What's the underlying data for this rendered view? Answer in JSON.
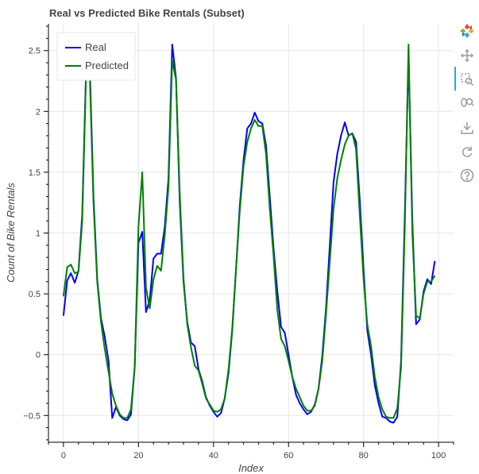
{
  "chart_data": {
    "type": "line",
    "title": "Real vs Predicted Bike Rentals (Subset)",
    "xlabel": "Index",
    "ylabel": "Count of Bike Rentals",
    "xlim": [
      -4,
      104
    ],
    "ylim": [
      -0.72,
      2.72
    ],
    "xticks": [
      0,
      20,
      40,
      60,
      80,
      100
    ],
    "yticks": [
      -0.5,
      0,
      0.5,
      1,
      1.5,
      2,
      2.5
    ],
    "xtick_labels": [
      "0",
      "20",
      "40",
      "60",
      "80",
      "100"
    ],
    "ytick_labels": [
      "−0.5",
      "0",
      "0.5",
      "1",
      "1.5",
      "2",
      "2.5"
    ],
    "grid": true,
    "legend_position": "top-left",
    "series": [
      {
        "name": "Real",
        "color": "#0000ff",
        "x": [
          0,
          1,
          2,
          3,
          4,
          5,
          6,
          7,
          8,
          9,
          10,
          11,
          12,
          13,
          14,
          15,
          16,
          17,
          18,
          19,
          20,
          21,
          22,
          23,
          24,
          25,
          26,
          27,
          28,
          29,
          30,
          31,
          32,
          33,
          34,
          35,
          36,
          37,
          38,
          39,
          40,
          41,
          42,
          43,
          44,
          45,
          46,
          47,
          48,
          49,
          50,
          51,
          52,
          53,
          54,
          55,
          56,
          57,
          58,
          59,
          60,
          61,
          62,
          63,
          64,
          65,
          66,
          67,
          68,
          69,
          70,
          71,
          72,
          73,
          74,
          75,
          76,
          77,
          78,
          79,
          80,
          81,
          82,
          83,
          84,
          85,
          86,
          87,
          88,
          89,
          90,
          91,
          92,
          93,
          94,
          95,
          96,
          97,
          98,
          99
        ],
        "values": [
          0.32,
          0.61,
          0.67,
          0.59,
          0.69,
          1.15,
          2.3,
          2.4,
          1.3,
          0.62,
          0.3,
          0.15,
          -0.05,
          -0.52,
          -0.43,
          -0.5,
          -0.53,
          -0.54,
          -0.49,
          -0.1,
          0.92,
          1.01,
          0.35,
          0.45,
          0.79,
          0.83,
          0.83,
          1.05,
          1.45,
          2.55,
          2.27,
          1.25,
          0.6,
          0.27,
          0.1,
          0.07,
          -0.12,
          -0.22,
          -0.35,
          -0.42,
          -0.47,
          -0.51,
          -0.48,
          -0.36,
          -0.15,
          0.2,
          0.7,
          1.22,
          1.6,
          1.86,
          1.9,
          1.99,
          1.92,
          1.9,
          1.72,
          1.3,
          0.88,
          0.52,
          0.23,
          0.18,
          0.0,
          -0.18,
          -0.33,
          -0.4,
          -0.45,
          -0.49,
          -0.47,
          -0.41,
          -0.28,
          -0.01,
          0.38,
          0.9,
          1.42,
          1.65,
          1.8,
          1.91,
          1.8,
          1.82,
          1.75,
          1.27,
          0.7,
          0.2,
          0.0,
          -0.25,
          -0.4,
          -0.51,
          -0.52,
          -0.55,
          -0.56,
          -0.51,
          -0.05,
          1.15,
          2.46,
          1.1,
          0.25,
          0.29,
          0.52,
          0.62,
          0.58,
          0.77
        ]
      },
      {
        "name": "Predicted",
        "color": "#008000",
        "x": [
          0,
          1,
          2,
          3,
          4,
          5,
          6,
          7,
          8,
          9,
          10,
          11,
          12,
          13,
          14,
          15,
          16,
          17,
          18,
          19,
          20,
          21,
          22,
          23,
          24,
          25,
          26,
          27,
          28,
          29,
          30,
          31,
          32,
          33,
          34,
          35,
          36,
          37,
          38,
          39,
          40,
          41,
          42,
          43,
          44,
          45,
          46,
          47,
          48,
          49,
          50,
          51,
          52,
          53,
          54,
          55,
          56,
          57,
          58,
          59,
          60,
          61,
          62,
          63,
          64,
          65,
          66,
          67,
          68,
          69,
          70,
          71,
          72,
          73,
          74,
          75,
          76,
          77,
          78,
          79,
          80,
          81,
          82,
          83,
          84,
          85,
          86,
          87,
          88,
          89,
          90,
          91,
          92,
          93,
          94,
          95,
          96,
          97,
          98,
          99
        ],
        "values": [
          0.48,
          0.72,
          0.74,
          0.67,
          0.68,
          1.1,
          2.27,
          2.32,
          1.25,
          0.6,
          0.27,
          0.05,
          -0.14,
          -0.32,
          -0.42,
          -0.49,
          -0.52,
          -0.52,
          -0.45,
          -0.1,
          1.05,
          1.5,
          0.55,
          0.38,
          0.62,
          0.73,
          0.69,
          0.98,
          1.38,
          2.42,
          2.26,
          1.32,
          0.63,
          0.25,
          0.06,
          -0.09,
          -0.13,
          -0.24,
          -0.36,
          -0.41,
          -0.46,
          -0.47,
          -0.45,
          -0.36,
          -0.12,
          0.22,
          0.7,
          1.18,
          1.55,
          1.75,
          1.86,
          1.93,
          1.88,
          1.88,
          1.65,
          1.2,
          0.82,
          0.37,
          0.13,
          0.07,
          -0.05,
          -0.18,
          -0.28,
          -0.35,
          -0.42,
          -0.46,
          -0.46,
          -0.42,
          -0.28,
          -0.05,
          0.33,
          0.77,
          1.2,
          1.45,
          1.6,
          1.73,
          1.8,
          1.82,
          1.69,
          1.15,
          0.62,
          0.25,
          0.07,
          -0.18,
          -0.35,
          -0.45,
          -0.51,
          -0.52,
          -0.52,
          -0.44,
          -0.1,
          1.05,
          2.55,
          1.0,
          0.32,
          0.3,
          0.5,
          0.6,
          0.6,
          0.65
        ]
      }
    ]
  },
  "toolbar": {
    "tools": [
      "bokeh-logo-icon",
      "pan-icon",
      "box-zoom-icon",
      "wheel-zoom-icon",
      "save-icon",
      "reset-icon",
      "help-icon"
    ]
  }
}
